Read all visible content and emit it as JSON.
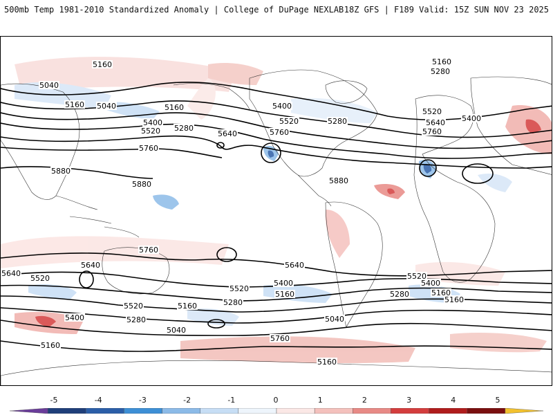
{
  "header": {
    "left_title": "500mb Temp 1981-2010 Standardized Anomaly | College of DuPage NEXLAB",
    "right_title": "18Z GFS | F189 Valid: 15Z SUN NOV 23 2025"
  },
  "map": {
    "contour_labels": [
      "5160",
      "5040",
      "5160",
      "5040",
      "5160",
      "5400",
      "5520",
      "5280",
      "5640",
      "5760",
      "5880",
      "5880",
      "5400",
      "5520",
      "5280",
      "5760",
      "5880",
      "5160",
      "5280",
      "5400",
      "5520",
      "5640",
      "5760",
      "5760",
      "5640",
      "5520",
      "5520",
      "5400",
      "5280",
      "5160",
      "5040",
      "5160",
      "5640",
      "5520",
      "5400",
      "5280",
      "5160",
      "5040",
      "5760",
      "5640",
      "5520",
      "5400",
      "5280",
      "5160",
      "5160"
    ]
  },
  "colorbar": {
    "labels": [
      "-5",
      "-4",
      "-3",
      "-2",
      "-1",
      "0",
      "1",
      "2",
      "3",
      "4",
      "5"
    ],
    "colors": [
      "#6a3d9a",
      "#1f3f7a",
      "#2b5ea8",
      "#3d8fd6",
      "#8cbbe8",
      "#c7def5",
      "#eef5fc",
      "#fbe8e6",
      "#f4c1bd",
      "#e88a86",
      "#d43d3d",
      "#b01c1c",
      "#7a0f0f",
      "#f2c12e"
    ]
  }
}
